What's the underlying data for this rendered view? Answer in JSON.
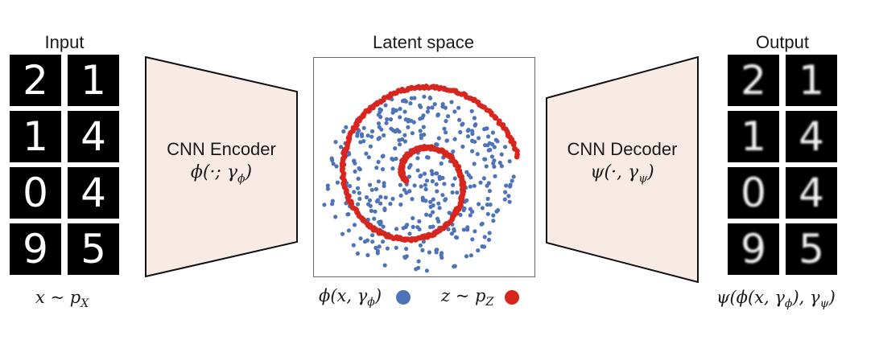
{
  "input": {
    "title": "Input",
    "digits": [
      "2",
      "1",
      "1",
      "4",
      "0",
      "4",
      "9",
      "5"
    ],
    "caption": "x ~ p",
    "caption_sub": "X"
  },
  "encoder": {
    "line1": "CNN Encoder",
    "line2": "ϕ(·; γ",
    "line2_sub": "ϕ",
    "line2_end": ")"
  },
  "latent": {
    "title": "Latent space",
    "legend_encoded": "ϕ(x, γ",
    "legend_encoded_sub": "ϕ",
    "legend_encoded_end": ")",
    "legend_prior": "z ~ p",
    "legend_prior_sub": "Z",
    "encoded_color": "#4f73b8",
    "prior_color": "#d8261f"
  },
  "decoder": {
    "line1": "CNN Decoder",
    "line2": "ψ(·, γ",
    "line2_sub": "ψ",
    "line2_end": ")"
  },
  "output": {
    "title": "Output",
    "digits": [
      "2",
      "1",
      "1",
      "4",
      "0",
      "4",
      "9",
      "5"
    ],
    "caption": "ψ(ϕ(x, γ",
    "caption_sub1": "ϕ",
    "caption_mid": "), γ",
    "caption_sub2": "ψ",
    "caption_end": ")"
  },
  "colors": {
    "trapezoid_fill": "#f8ebe6",
    "trapezoid_stroke": "#111111"
  }
}
